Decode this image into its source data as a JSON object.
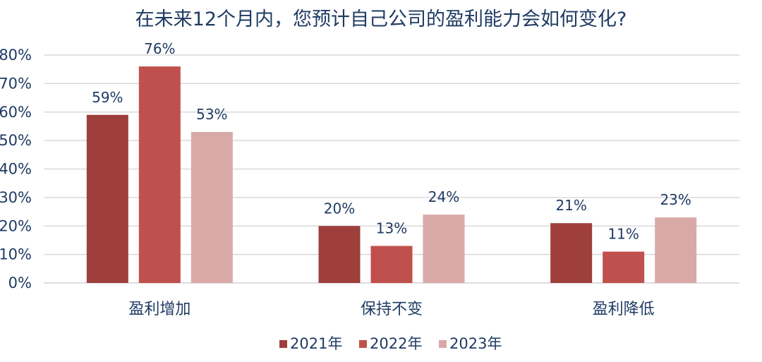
{
  "chart_data": {
    "type": "bar",
    "title": "在未来12个月内，您预计自己公司的盈利能力会如何变化?",
    "xlabel": "",
    "ylabel": "",
    "categories": [
      "盈利增加",
      "保持不变",
      "盈利降低"
    ],
    "series": [
      {
        "name": "2021年",
        "values": [
          59,
          20,
          21
        ],
        "labels": [
          "59%",
          "20%",
          "21%"
        ]
      },
      {
        "name": "2022年",
        "values": [
          76,
          13,
          11
        ],
        "labels": [
          "76%",
          "13%",
          "11%"
        ]
      },
      {
        "name": "2023年",
        "values": [
          53,
          24,
          23
        ],
        "labels": [
          "53%",
          "24%",
          "23%"
        ]
      }
    ],
    "ylim": [
      0,
      80
    ],
    "yticks": [
      "0%",
      "10%",
      "20%",
      "30%",
      "40%",
      "50%",
      "60%",
      "70%",
      "80%"
    ],
    "grid": true,
    "legend_position": "bottom"
  },
  "colors": {
    "series": [
      "#9e3f3c",
      "#c0504d",
      "#d9a9a8"
    ],
    "text": "#1f3b63",
    "grid": "#d9d9d9"
  }
}
